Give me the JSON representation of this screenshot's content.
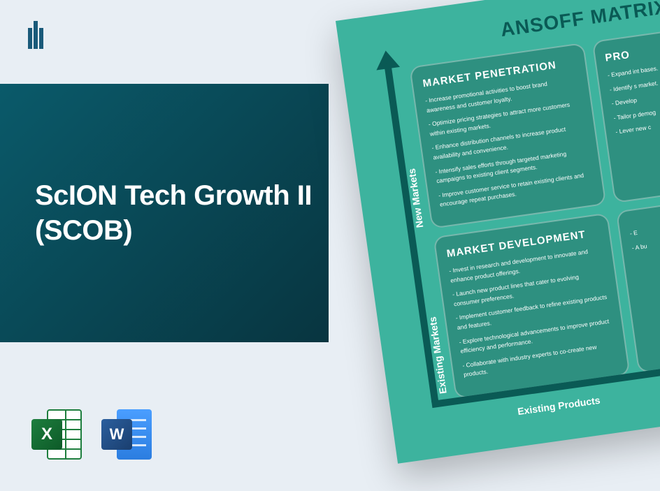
{
  "page": {
    "background": "#e8eef4"
  },
  "title": "ScION Tech Growth II (SCOB)",
  "title_panel": {
    "gradient_from": "#0a5a6a",
    "gradient_to": "#083540",
    "text_color": "#ffffff",
    "font_size": 40
  },
  "icons": {
    "excel": {
      "letter": "X",
      "color_primary": "#1e7e3e",
      "color_dark": "#0d5a28"
    },
    "word": {
      "letter": "W",
      "color_primary": "#2b5f9e",
      "color_dark": "#1a3e6e",
      "back_from": "#4a9eff",
      "back_to": "#2b7de0"
    }
  },
  "matrix": {
    "card_bg": "#3db39e",
    "title": "ANSOFF MATRIX",
    "title_color": "#0a5a55",
    "title_fontsize": 28,
    "rotation_deg": -8,
    "cell_bg": "rgba(40,130,115,0.7)",
    "cell_border": "rgba(255,255,255,0.35)",
    "axis_color": "#0a5a55",
    "y_labels": {
      "top": "New Markets",
      "bottom": "Existing Markets"
    },
    "x_labels": {
      "left": "Existing Products"
    },
    "cells": {
      "top_left": {
        "title": "MARKET PENETRATION",
        "items": [
          "Increase promotional activities to boost brand awareness and customer loyalty.",
          "Optimize pricing strategies to attract more customers within existing markets.",
          "Enhance distribution channels to increase product availability and convenience.",
          "Intensify sales efforts through targeted marketing campaigns to existing client segments.",
          "Improve customer service to retain existing clients and encourage repeat purchases."
        ]
      },
      "top_right": {
        "title": "PRO",
        "items": [
          "Expand int bases.",
          "Identify s market.",
          "Develop",
          "Tailor p demog",
          "Lever new c"
        ]
      },
      "bottom_left": {
        "title": "MARKET DEVELOPMENT",
        "items": [
          "Invest in research and development to innovate and enhance product offerings.",
          "Launch new product lines that cater to evolving consumer preferences.",
          "Implement customer feedback to refine existing products and features.",
          "Explore technological advancements to improve product efficiency and performance.",
          "Collaborate with industry experts to co-create new products."
        ]
      },
      "bottom_right": {
        "title": "",
        "items": [
          "E",
          "A bu"
        ]
      }
    }
  }
}
